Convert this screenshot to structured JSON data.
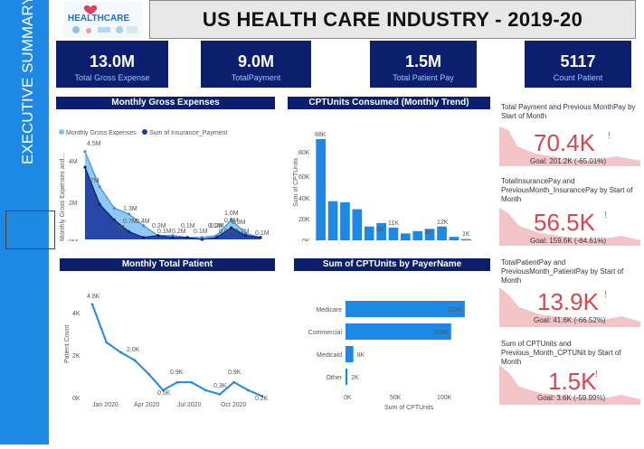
{
  "rail": {
    "label": "EXECUTIVE SUMMARY"
  },
  "logo": {
    "text": "HEALTHCARE"
  },
  "header": {
    "title": "US HEALTH CARE INDUSTRY - 2019-20"
  },
  "kpis": [
    {
      "value": "13.0M",
      "label": "Total Gross Expense"
    },
    {
      "value": "9.0M",
      "label": "TotalPayment"
    },
    {
      "value": "1.5M",
      "label": "Total Patient Pay"
    },
    {
      "value": "5117",
      "label": "Count Patient"
    }
  ],
  "gross_chart": {
    "title": "Monthly Gross Expenses",
    "legend": [
      "Monthly Gross Expenses",
      "Sum of Insurance_Payment"
    ],
    "colors": [
      "#7cc0f5",
      "#1a3a9e"
    ],
    "ylabel": "Monthly Gross Expenses and...",
    "yticks": [
      "4M",
      "2M",
      "0M"
    ],
    "xticks": [
      "Jan 2020",
      "Apr 2020",
      "Jul 2020",
      "Oct 2020"
    ],
    "labels_gross": [
      "4.5M",
      "2.7M",
      "1.3M",
      "0.7M",
      "0.2M",
      "0.1M",
      "0.1M",
      "0.2M",
      "1.0M",
      "0.3M"
    ],
    "labels_ins": [
      "1.0M",
      "0.4M",
      "0.1M",
      "0.2M",
      "0.1M",
      "0.0M",
      "0.6M",
      "0.2M",
      "0.1M"
    ]
  },
  "cpt_trend": {
    "title": "CPTUnits Consumed (Monthly Trend)",
    "ylabel": "Sum of CPTUnits",
    "yticks": [
      "80K",
      "60K",
      "40K",
      "20K",
      "0K"
    ],
    "xticks": [
      "Jan 2020",
      "Apr 2020",
      "Jul 2020",
      "Oct 2020"
    ],
    "bar_labels": [
      "88K",
      "6K",
      "11K",
      "3K",
      "12K",
      "1K"
    ],
    "color": "#1e88e5"
  },
  "patient_chart": {
    "title": "Monthly Total Patient",
    "ylabel": "Patient Count",
    "yticks": [
      "4K",
      "2K",
      "0K"
    ],
    "xticks": [
      "Jan 2020",
      "Apr 2020",
      "Jul 2020",
      "Oct 2020"
    ],
    "labels": [
      "4.8K",
      "2.0K",
      "0.5K",
      "0.9K",
      "0.3K",
      "0.9K",
      "0.2K"
    ],
    "color": "#1e88e5"
  },
  "payer_chart": {
    "title": "Sum of CPTUnits by PayerName",
    "xlabel": "Sum of CPTUnits",
    "xticks": [
      "0K",
      "50K",
      "100K"
    ],
    "color": "#1e88e5"
  },
  "cards": [
    {
      "title": "Total Payment and Previous MonthPay by Start of Month",
      "value": "70.4K",
      "goal": "Goal: 201.2K (-65.01%)"
    },
    {
      "title": "TotalInsurancePay and PreviousMonth_InsurancePay by Start of Month",
      "value": "56.5K",
      "goal": "Goal: 159.6K (-64.61%)"
    },
    {
      "title": "TotalPatientPay and PreviousMonth_PatientPay by Start of Month",
      "value": "13.9K",
      "goal": "Goal: 41.6K (-66.52%)"
    },
    {
      "title": "Sum of CPTUnits and Previous_Month_CPTUNit by Start of Month",
      "value": "1.5K",
      "goal": "Goal: 3.6K (-59.99%)"
    }
  ],
  "card_style": {
    "value_color": "#d6474f",
    "spark_color": "#f2c4c6"
  },
  "chart_data": [
    {
      "type": "area",
      "title": "Monthly Gross Expenses",
      "x": [
        "2019-12",
        "2020-01",
        "2020-02",
        "2020-03",
        "2020-04",
        "2020-05",
        "2020-06",
        "2020-07",
        "2020-08",
        "2020-09",
        "2020-10",
        "2020-11",
        "2020-12"
      ],
      "series": [
        {
          "name": "Monthly Gross Expenses",
          "values": [
            4.5,
            2.7,
            1.6,
            1.3,
            0.7,
            0.2,
            0.2,
            0.1,
            0.1,
            0.2,
            1.0,
            0.3,
            0.1
          ]
        },
        {
          "name": "Sum of Insurance_Payment",
          "values": [
            3.7,
            1.8,
            1.0,
            0.4,
            0.1,
            0.2,
            0.1,
            0.1,
            0.0,
            0.1,
            0.6,
            0.2,
            0.1
          ]
        }
      ],
      "ylim": [
        0,
        5
      ]
    },
    {
      "type": "bar",
      "title": "CPTUnits Consumed (Monthly Trend)",
      "categories": [
        "2019-12",
        "2020-01",
        "2020-02",
        "2020-03",
        "2020-04",
        "2020-05",
        "2020-06",
        "2020-07",
        "2020-08",
        "2020-09",
        "2020-10",
        "2020-11",
        "2020-12"
      ],
      "values": [
        88,
        34,
        33,
        27,
        12,
        15,
        11,
        6,
        8,
        10,
        12,
        3,
        1
      ],
      "ylim": [
        0,
        95
      ]
    },
    {
      "type": "line",
      "title": "Monthly Total Patient",
      "x": [
        "2019-12",
        "2020-01",
        "2020-02",
        "2020-03",
        "2020-04",
        "2020-05",
        "2020-06",
        "2020-07",
        "2020-08",
        "2020-09",
        "2020-10",
        "2020-11",
        "2020-12"
      ],
      "values": [
        4.8,
        2.9,
        2.4,
        2.0,
        1.3,
        0.5,
        0.9,
        0.9,
        0.5,
        0.3,
        0.9,
        0.5,
        0.2
      ],
      "ylim": [
        0,
        5.2
      ]
    },
    {
      "type": "bar",
      "orientation": "horizontal",
      "title": "Sum of CPTUnits by PayerName",
      "categories": [
        "Medicare",
        "Commercial",
        "Medicaid",
        "Other"
      ],
      "values": [
        122,
        108,
        8,
        2
      ],
      "value_labels": [
        "122K",
        "108K",
        "8K",
        "2K"
      ],
      "xlim": [
        0,
        135
      ]
    }
  ]
}
